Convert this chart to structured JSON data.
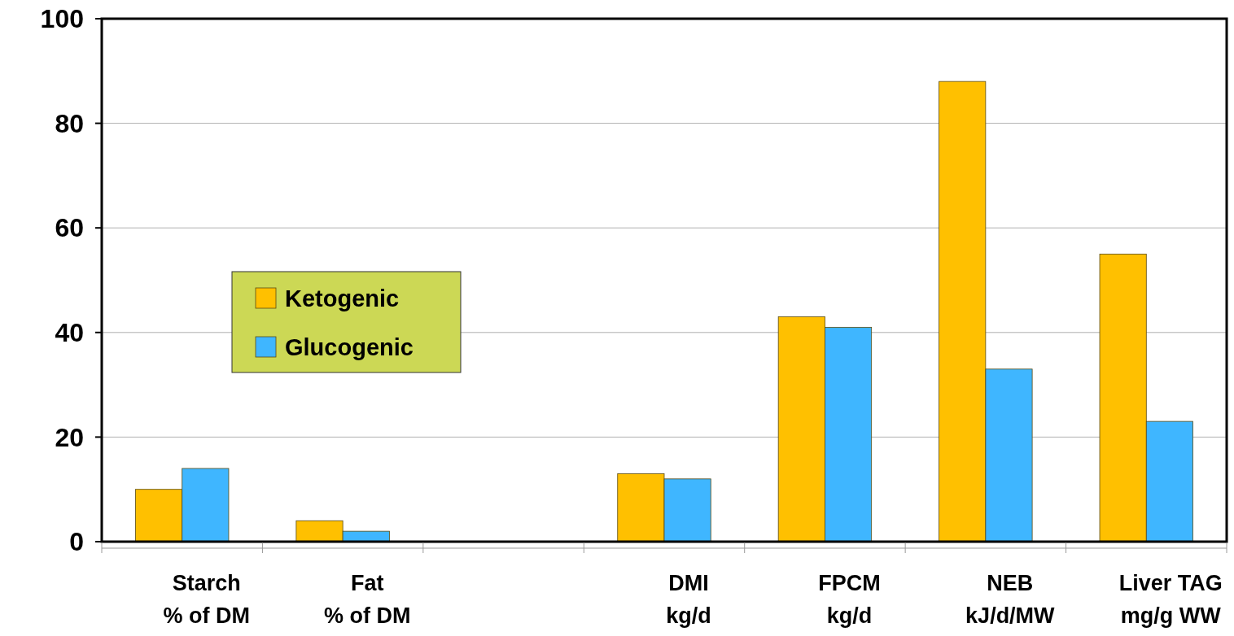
{
  "chart_data": {
    "type": "bar",
    "categories": [
      "Starch\n% of DM",
      "Fat\n% of DM",
      null,
      "DMI\nkg/d",
      "FPCM\nkg/d",
      "NEB\nkJ/d/MW",
      "Liver TAG\nmg/g WW"
    ],
    "series": [
      {
        "name": "Ketogenic",
        "color": "#ffc000",
        "values": [
          10,
          4,
          null,
          13,
          43,
          88,
          55
        ]
      },
      {
        "name": "Glucogenic",
        "color": "#3fb6ff",
        "values": [
          14,
          2,
          null,
          12,
          41,
          33,
          23
        ]
      }
    ],
    "ylim": [
      0,
      100
    ],
    "yticks": [
      0,
      20,
      40,
      60,
      80,
      100
    ],
    "grid": "y",
    "legend": "left"
  }
}
